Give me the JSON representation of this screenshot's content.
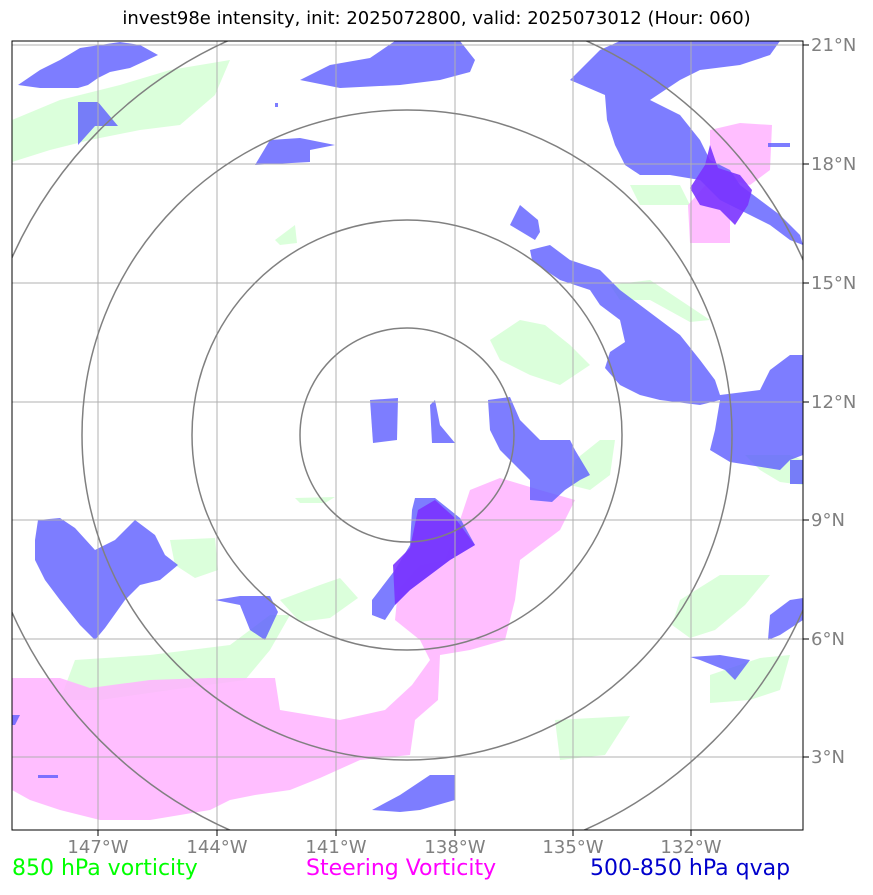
{
  "title": "invest98e intensity, init: 2025072800, valid: 2025073012 (Hour: 060)",
  "lat_labels": [
    "21°N",
    "18°N",
    "15°N",
    "12°N",
    "9°N",
    "6°N",
    "3°N"
  ],
  "lon_labels": [
    "147°W",
    "144°W",
    "141°W",
    "138°W",
    "135°W",
    "132°W"
  ],
  "legend": {
    "vort850": "850 hPa vorticity",
    "steering": "Steering Vorticity",
    "qvap": "500-850 hPa qvap"
  },
  "colors": {
    "vort850": "#00ff00",
    "steering": "#ff00ff",
    "qvap": "#0000cc",
    "vort850_fill": "#ccffcc",
    "steering_fill": "#ffb3ff",
    "qvap_fill": "#6666ff",
    "grid": "#b0b0b0",
    "rings": "#808080",
    "ticks": "#808080"
  }
}
